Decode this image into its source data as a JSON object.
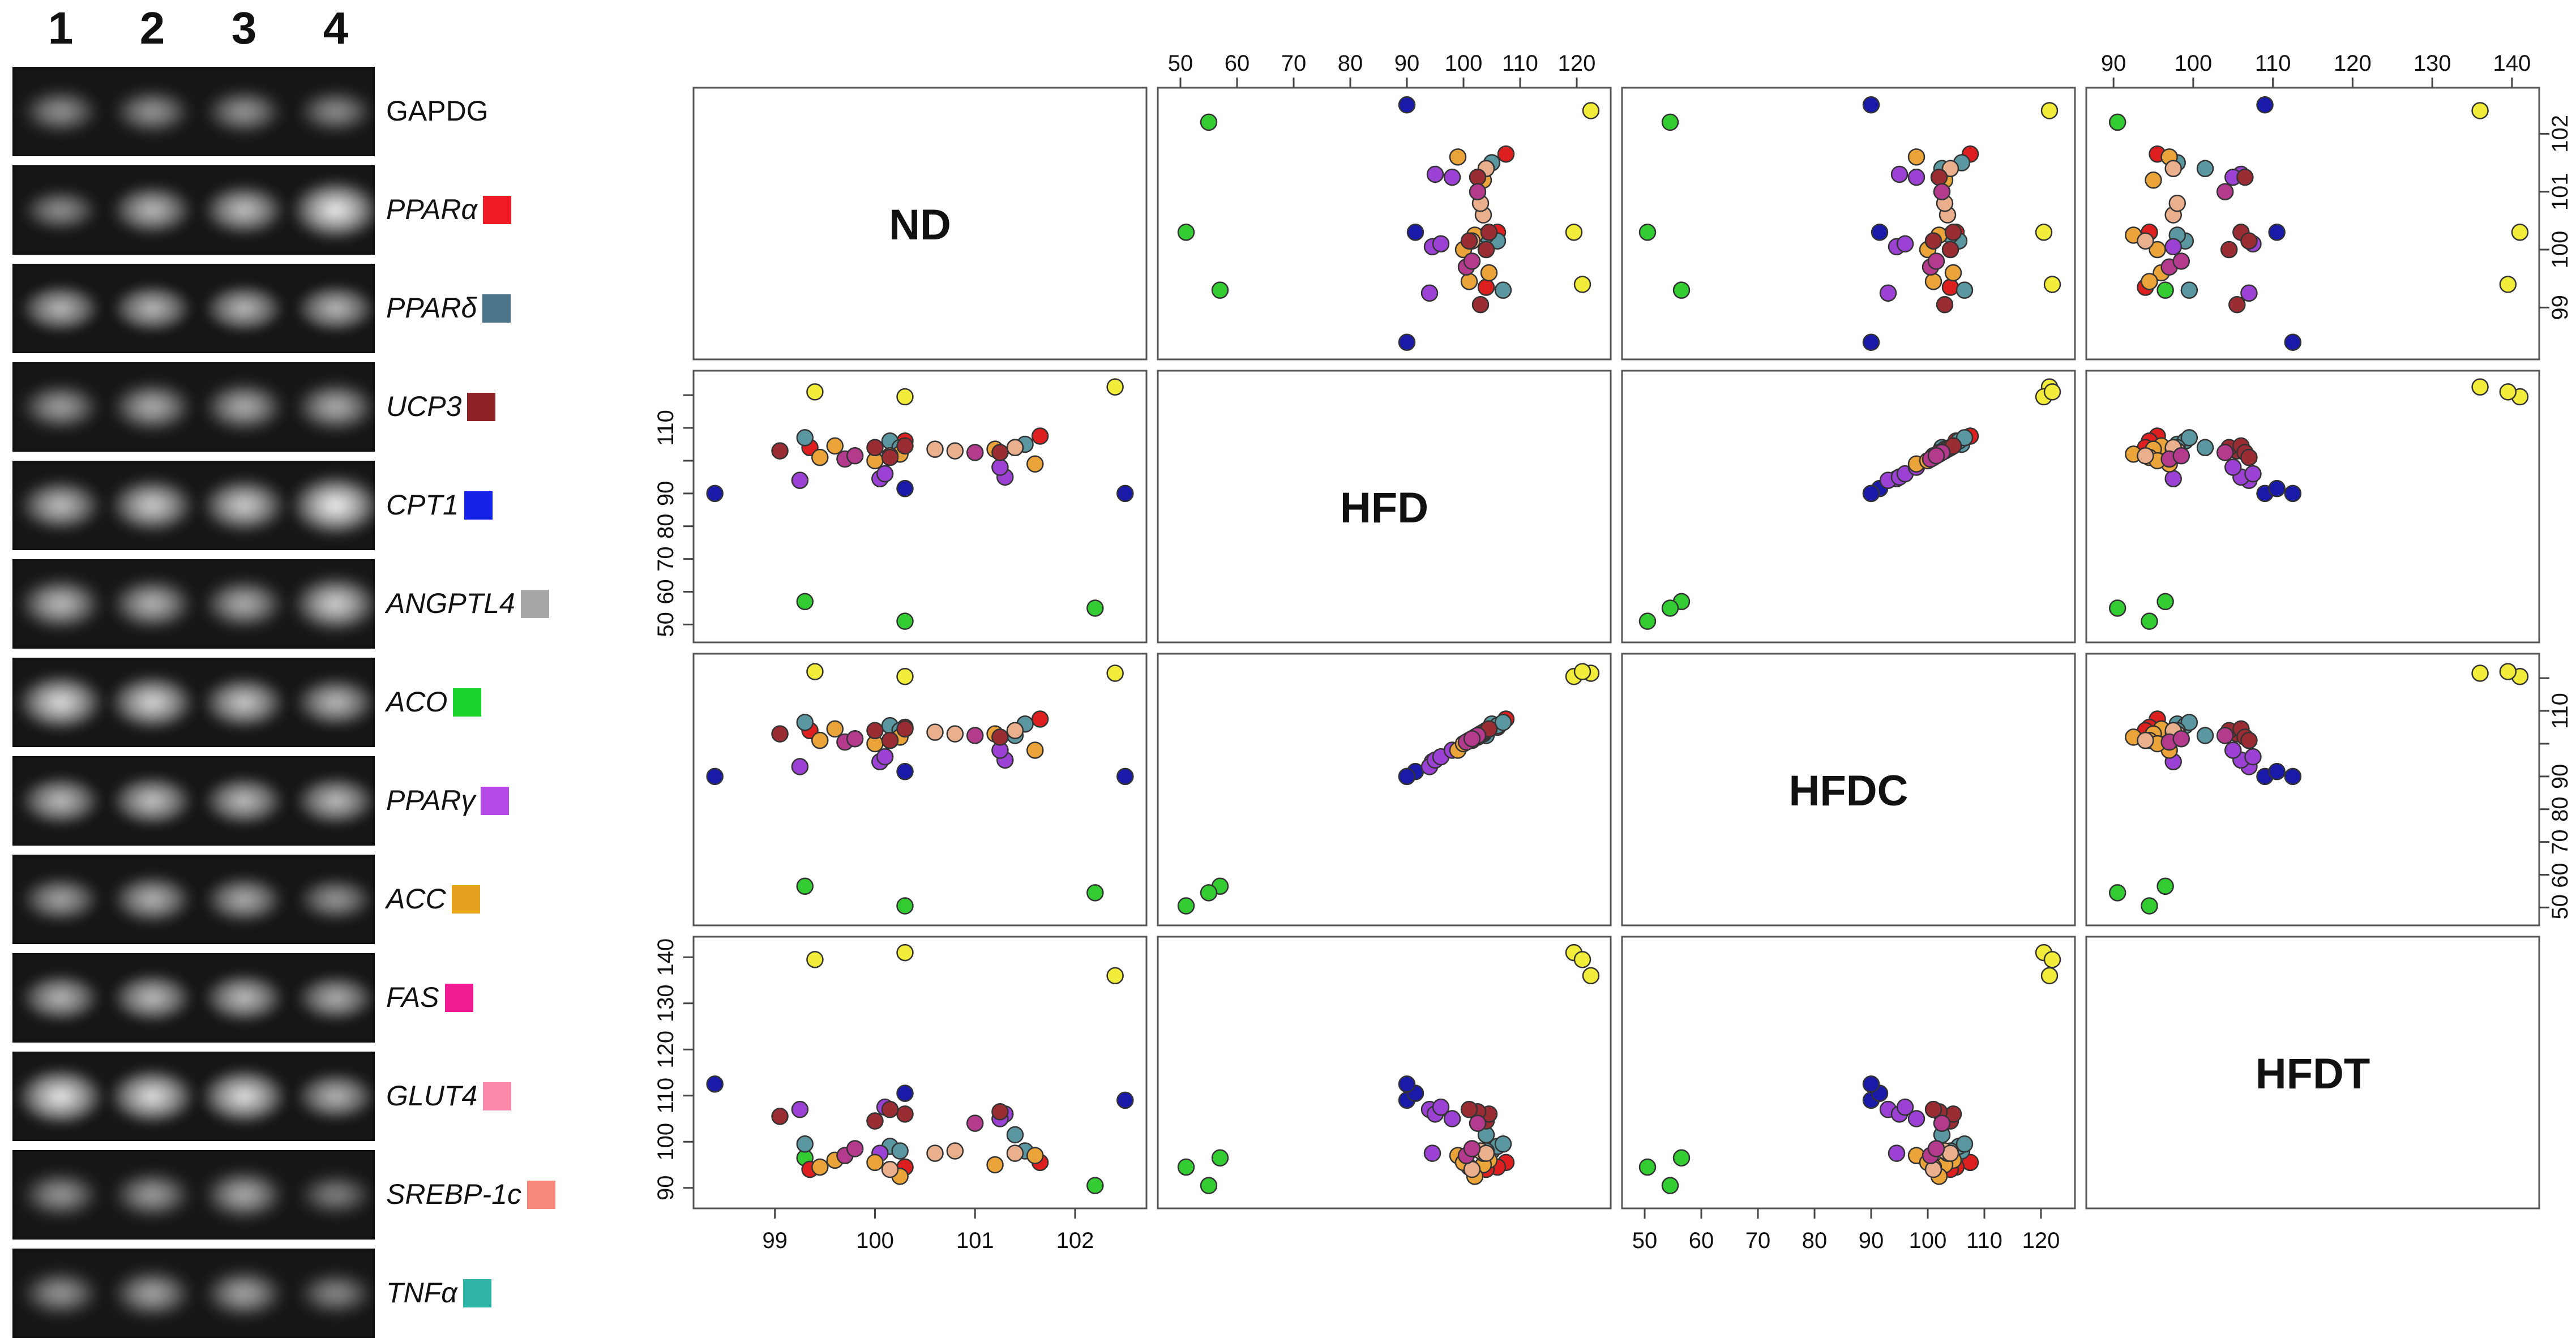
{
  "colors": {
    "ND_GREEN": "#33cc33",
    "NAVY": "#1a1aa8",
    "YELLOW": "#f2ec3a",
    "RED": "#dd1f1f",
    "TEAL": "#5b97a0",
    "PURPLE": "#9b42d4",
    "ORANGE": "#eaa43a",
    "PEACH": "#eab08e",
    "MAROON": "#9a2c34",
    "MAGENTA": "#b43a8e"
  },
  "gel": {
    "lanes": [
      "1",
      "2",
      "3",
      "4"
    ],
    "rows": [
      {
        "gene": "GAPDG",
        "italic": false,
        "swatch": "",
        "intensity": [
          0.35,
          0.38,
          0.38,
          0.32
        ],
        "blur": 0.9
      },
      {
        "gene": "PPARα",
        "italic": true,
        "swatch": "#ee1a24",
        "intensity": [
          0.3,
          0.6,
          0.65,
          0.95
        ],
        "blur": 0.7
      },
      {
        "gene": "PPARδ",
        "italic": true,
        "swatch": "#4b7389",
        "intensity": [
          0.55,
          0.55,
          0.55,
          0.55
        ],
        "blur": 0.45
      },
      {
        "gene": "UCP3",
        "italic": true,
        "swatch": "#8e2327",
        "intensity": [
          0.45,
          0.55,
          0.55,
          0.55
        ],
        "blur": 0.9
      },
      {
        "gene": "CPT1",
        "italic": true,
        "swatch": "#1322e6",
        "intensity": [
          0.65,
          0.75,
          0.75,
          1.0
        ],
        "blur": 0.8
      },
      {
        "gene": "ANGPTL4",
        "italic": true,
        "swatch": "#a7a7a7",
        "intensity": [
          0.65,
          0.6,
          0.55,
          0.8
        ],
        "blur": 0.9
      },
      {
        "gene": "ACO",
        "italic": true,
        "swatch": "#1ad12d",
        "intensity": [
          0.85,
          0.8,
          0.7,
          0.6
        ],
        "blur": 0.7
      },
      {
        "gene": "PPARγ",
        "italic": true,
        "swatch": "#b449e5",
        "intensity": [
          0.6,
          0.65,
          0.6,
          0.6
        ],
        "blur": 0.6
      },
      {
        "gene": "ACC",
        "italic": true,
        "swatch": "#e6a21e",
        "intensity": [
          0.45,
          0.55,
          0.5,
          0.35
        ],
        "blur": 0.7
      },
      {
        "gene": "FAS",
        "italic": true,
        "swatch": "#f01d92",
        "intensity": [
          0.55,
          0.6,
          0.6,
          0.5
        ],
        "blur": 0.6
      },
      {
        "gene": "GLUT4",
        "italic": true,
        "swatch": "#f889a9",
        "intensity": [
          0.9,
          0.85,
          0.85,
          0.55
        ],
        "blur": 0.6
      },
      {
        "gene": "SREBP-1c",
        "italic": true,
        "swatch": "#f7897c",
        "intensity": [
          0.4,
          0.45,
          0.55,
          0.25
        ],
        "blur": 1.0
      },
      {
        "gene": "TNFα",
        "italic": true,
        "swatch": "#2eb5a8",
        "intensity": [
          0.4,
          0.5,
          0.5,
          0.3
        ],
        "blur": 1.0
      }
    ]
  },
  "chart_data": {
    "type": "scatter",
    "layout": "scatterplot-matrix",
    "variables": [
      "ND",
      "HFD",
      "HFDC",
      "HFDT"
    ],
    "axes": {
      "ND": {
        "range": [
          98.3,
          102.6
        ],
        "ticks": [
          99,
          100,
          101,
          102
        ],
        "tick_labels": [
          "99",
          "100",
          "101",
          "102"
        ]
      },
      "HFD": {
        "range": [
          48,
          124
        ],
        "ticks": [
          50,
          60,
          70,
          80,
          90,
          100,
          110,
          120
        ],
        "tick_labels": [
          "50",
          "60",
          "70",
          "80",
          "90",
          "100",
          "110",
          "120"
        ]
      },
      "HFDC": {
        "range": [
          48,
          124
        ],
        "ticks": [
          50,
          60,
          70,
          80,
          90,
          100,
          110,
          120
        ],
        "tick_labels": [
          "50",
          "60",
          "70",
          "80",
          "90",
          "100",
          "110",
          "120"
        ]
      },
      "HFDT": {
        "range": [
          88,
          142
        ],
        "ticks": [
          90,
          100,
          110,
          120,
          130,
          140
        ],
        "tick_labels": [
          "90",
          "100",
          "110",
          "120",
          "130",
          "140"
        ]
      }
    },
    "tick_placement": {
      "top": [
        "",
        "HFD",
        "",
        "HFDT"
      ],
      "bottom": [
        "ND",
        "",
        "HFDC",
        ""
      ],
      "left": [
        "",
        "HFD",
        "",
        "HFDT"
      ],
      "right": [
        "ND",
        "",
        "HFDC",
        ""
      ],
      "left_labels": {
        "HFD": [
          "50",
          "60",
          "70",
          "80",
          "90",
          "110"
        ],
        "HFDT": [
          "90",
          "100",
          "110",
          "120",
          "130",
          "140"
        ]
      },
      "right_labels": {
        "ND": [
          "99",
          "100",
          "101",
          "102"
        ],
        "HFDC": [
          "50 60",
          "70",
          "80",
          "90",
          "110"
        ]
      }
    },
    "points": [
      {
        "ND": 99.3,
        "HFD": 57.0,
        "HFDC": 56.5,
        "HFDT": 96.5,
        "color": "#33cc33"
      },
      {
        "ND": 100.3,
        "HFD": 51.0,
        "HFDC": 50.5,
        "HFDT": 94.5,
        "color": "#33cc33"
      },
      {
        "ND": 102.2,
        "HFD": 55.0,
        "HFDC": 54.5,
        "HFDT": 90.5,
        "color": "#33cc33"
      },
      {
        "ND": 102.5,
        "HFD": 90.0,
        "HFDC": 90.0,
        "HFDT": 109.0,
        "color": "#1a1aa8"
      },
      {
        "ND": 100.3,
        "HFD": 91.5,
        "HFDC": 91.5,
        "HFDT": 110.5,
        "color": "#1a1aa8"
      },
      {
        "ND": 98.4,
        "HFD": 90.0,
        "HFDC": 90.0,
        "HFDT": 112.5,
        "color": "#1a1aa8"
      },
      {
        "ND": 102.4,
        "HFD": 122.5,
        "HFDC": 121.5,
        "HFDT": 136.0,
        "color": "#f2ec3a"
      },
      {
        "ND": 100.3,
        "HFD": 119.5,
        "HFDC": 120.5,
        "HFDT": 141.0,
        "color": "#f2ec3a"
      },
      {
        "ND": 99.4,
        "HFD": 121.0,
        "HFDC": 122.0,
        "HFDT": 139.5,
        "color": "#f2ec3a"
      },
      {
        "ND": 101.65,
        "HFD": 107.5,
        "HFDC": 107.5,
        "HFDT": 95.5,
        "color": "#dd1f1f"
      },
      {
        "ND": 100.3,
        "HFD": 106.0,
        "HFDC": 105.0,
        "HFDT": 94.5,
        "color": "#dd1f1f"
      },
      {
        "ND": 99.35,
        "HFD": 104.0,
        "HFDC": 104.0,
        "HFDT": 94.0,
        "color": "#dd1f1f"
      },
      {
        "ND": 101.5,
        "HFD": 105.0,
        "HFDC": 106.0,
        "HFDT": 98.0,
        "color": "#5b97a0"
      },
      {
        "ND": 100.15,
        "HFD": 106.0,
        "HFDC": 105.5,
        "HFDT": 99.0,
        "color": "#5b97a0"
      },
      {
        "ND": 99.3,
        "HFD": 107.0,
        "HFDC": 106.5,
        "HFDT": 99.5,
        "color": "#5b97a0"
      },
      {
        "ND": 101.4,
        "HFD": 104.0,
        "HFDC": 102.5,
        "HFDT": 101.5,
        "color": "#5b97a0"
      },
      {
        "ND": 100.25,
        "HFD": 104.0,
        "HFDC": 104.0,
        "HFDT": 98.0,
        "color": "#5b97a0"
      },
      {
        "ND": 100.05,
        "HFD": 94.5,
        "HFDC": 94.5,
        "HFDT": 97.5,
        "color": "#9b42d4"
      },
      {
        "ND": 99.25,
        "HFD": 94.0,
        "HFDC": 93.0,
        "HFDT": 107.0,
        "color": "#9b42d4"
      },
      {
        "ND": 101.3,
        "HFD": 95.0,
        "HFDC": 95.0,
        "HFDT": 106.0,
        "color": "#9b42d4"
      },
      {
        "ND": 100.1,
        "HFD": 96.0,
        "HFDC": 96.0,
        "HFDT": 107.5,
        "color": "#9b42d4"
      },
      {
        "ND": 101.25,
        "HFD": 98.0,
        "HFDC": 98.0,
        "HFDT": 105.0,
        "color": "#9b42d4"
      },
      {
        "ND": 99.6,
        "HFD": 104.5,
        "HFDC": 104.5,
        "HFDT": 96.0,
        "color": "#eaa43a"
      },
      {
        "ND": 101.2,
        "HFD": 103.5,
        "HFDC": 103.0,
        "HFDT": 95.0,
        "color": "#eaa43a"
      },
      {
        "ND": 99.45,
        "HFD": 101.0,
        "HFDC": 101.0,
        "HFDT": 94.5,
        "color": "#eaa43a"
      },
      {
        "ND": 100.25,
        "HFD": 102.0,
        "HFDC": 102.0,
        "HFDT": 92.5,
        "color": "#eaa43a"
      },
      {
        "ND": 101.6,
        "HFD": 99.0,
        "HFDC": 98.0,
        "HFDT": 97.0,
        "color": "#eaa43a"
      },
      {
        "ND": 100.0,
        "HFD": 100.0,
        "HFDC": 100.0,
        "HFDT": 95.5,
        "color": "#eaa43a"
      },
      {
        "ND": 100.6,
        "HFD": 103.5,
        "HFDC": 103.5,
        "HFDT": 97.5,
        "color": "#eab08e"
      },
      {
        "ND": 100.8,
        "HFD": 103.0,
        "HFDC": 103.0,
        "HFDT": 98.0,
        "color": "#eab08e"
      },
      {
        "ND": 101.4,
        "HFD": 104.0,
        "HFDC": 104.0,
        "HFDT": 97.5,
        "color": "#eab08e"
      },
      {
        "ND": 100.15,
        "HFD": 101.5,
        "HFDC": 101.0,
        "HFDT": 94.0,
        "color": "#eab08e"
      },
      {
        "ND": 99.05,
        "HFD": 103.0,
        "HFDC": 103.0,
        "HFDT": 105.5,
        "color": "#9a2c34"
      },
      {
        "ND": 100.0,
        "HFD": 104.0,
        "HFDC": 104.0,
        "HFDT": 104.5,
        "color": "#9a2c34"
      },
      {
        "ND": 100.3,
        "HFD": 104.5,
        "HFDC": 104.5,
        "HFDT": 106.0,
        "color": "#9a2c34"
      },
      {
        "ND": 101.25,
        "HFD": 102.5,
        "HFDC": 102.0,
        "HFDT": 106.5,
        "color": "#9a2c34"
      },
      {
        "ND": 100.15,
        "HFD": 101.0,
        "HFDC": 101.0,
        "HFDT": 107.0,
        "color": "#9a2c34"
      },
      {
        "ND": 99.7,
        "HFD": 100.5,
        "HFDC": 100.5,
        "HFDT": 97.0,
        "color": "#b43a8e"
      },
      {
        "ND": 101.0,
        "HFD": 102.5,
        "HFDC": 102.5,
        "HFDT": 104.0,
        "color": "#b43a8e"
      },
      {
        "ND": 99.8,
        "HFD": 101.5,
        "HFDC": 101.5,
        "HFDT": 98.5,
        "color": "#b43a8e"
      }
    ],
    "xlabel": "",
    "ylabel": "",
    "title": "",
    "grid": false
  }
}
